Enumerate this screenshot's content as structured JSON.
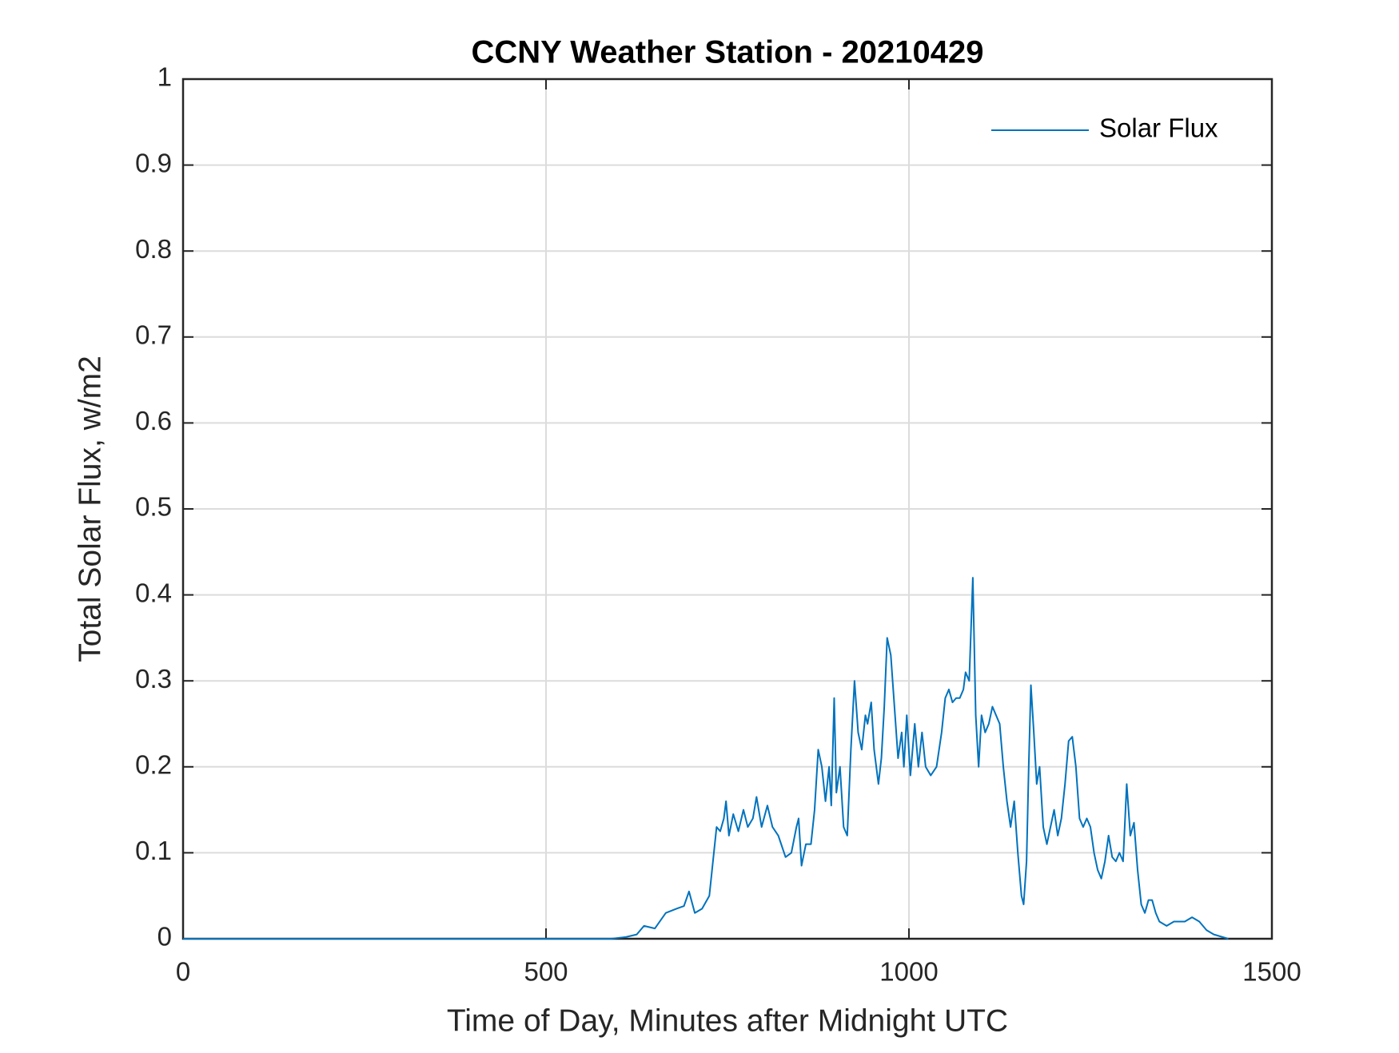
{
  "chart_data": {
    "type": "line",
    "title": "CCNY Weather Station - 20210429",
    "xlabel": "Time of Day, Minutes after Midnight UTC",
    "ylabel": "Total Solar Flux, w/m2",
    "xlim": [
      0,
      1500
    ],
    "xticks": [
      0,
      500,
      1000,
      1500
    ],
    "ylim": [
      0,
      1
    ],
    "yticks": [
      0,
      0.1,
      0.2,
      0.3,
      0.4,
      0.5,
      0.6,
      0.7,
      0.8,
      0.9,
      1
    ],
    "grid": true,
    "legend": "northeast",
    "x": [
      0,
      590,
      610,
      625,
      635,
      650,
      665,
      680,
      690,
      697,
      705,
      715,
      725,
      730,
      735,
      740,
      745,
      748,
      752,
      758,
      765,
      772,
      778,
      785,
      790,
      797,
      805,
      812,
      820,
      830,
      838,
      845,
      848,
      852,
      858,
      865,
      870,
      875,
      880,
      885,
      890,
      893,
      897,
      900,
      905,
      910,
      915,
      920,
      925,
      930,
      935,
      940,
      943,
      948,
      952,
      958,
      962,
      966,
      970,
      975,
      980,
      985,
      990,
      993,
      997,
      1002,
      1008,
      1013,
      1018,
      1023,
      1030,
      1038,
      1045,
      1050,
      1055,
      1060,
      1065,
      1070,
      1075,
      1078,
      1083,
      1088,
      1092,
      1096,
      1100,
      1105,
      1110,
      1115,
      1120,
      1125,
      1130,
      1135,
      1140,
      1145,
      1150,
      1155,
      1158,
      1162,
      1165,
      1168,
      1172,
      1176,
      1180,
      1185,
      1190,
      1195,
      1200,
      1205,
      1210,
      1215,
      1220,
      1225,
      1230,
      1235,
      1240,
      1245,
      1250,
      1255,
      1260,
      1265,
      1270,
      1275,
      1280,
      1285,
      1290,
      1295,
      1300,
      1305,
      1310,
      1315,
      1320,
      1325,
      1330,
      1335,
      1340,
      1345,
      1355,
      1365,
      1380,
      1390,
      1400,
      1410,
      1420,
      1440
    ],
    "series": [
      {
        "name": "Solar Flux",
        "color": "#0072bd",
        "values": [
          0,
          0,
          0.002,
          0.005,
          0.015,
          0.012,
          0.03,
          0.035,
          0.038,
          0.055,
          0.03,
          0.035,
          0.05,
          0.09,
          0.13,
          0.125,
          0.14,
          0.16,
          0.12,
          0.145,
          0.125,
          0.15,
          0.13,
          0.14,
          0.165,
          0.13,
          0.155,
          0.13,
          0.12,
          0.095,
          0.1,
          0.13,
          0.14,
          0.085,
          0.11,
          0.11,
          0.15,
          0.22,
          0.2,
          0.16,
          0.2,
          0.155,
          0.28,
          0.17,
          0.2,
          0.13,
          0.12,
          0.22,
          0.3,
          0.24,
          0.22,
          0.26,
          0.25,
          0.275,
          0.22,
          0.18,
          0.21,
          0.27,
          0.35,
          0.33,
          0.27,
          0.21,
          0.24,
          0.2,
          0.26,
          0.19,
          0.25,
          0.2,
          0.24,
          0.2,
          0.19,
          0.2,
          0.24,
          0.28,
          0.29,
          0.275,
          0.28,
          0.28,
          0.29,
          0.31,
          0.3,
          0.42,
          0.26,
          0.2,
          0.26,
          0.24,
          0.25,
          0.27,
          0.26,
          0.25,
          0.2,
          0.16,
          0.13,
          0.16,
          0.1,
          0.05,
          0.04,
          0.09,
          0.2,
          0.295,
          0.24,
          0.18,
          0.2,
          0.13,
          0.11,
          0.13,
          0.15,
          0.12,
          0.14,
          0.18,
          0.23,
          0.235,
          0.2,
          0.14,
          0.13,
          0.14,
          0.13,
          0.1,
          0.08,
          0.07,
          0.09,
          0.12,
          0.095,
          0.09,
          0.1,
          0.09,
          0.18,
          0.12,
          0.135,
          0.08,
          0.04,
          0.03,
          0.045,
          0.045,
          0.03,
          0.02,
          0.015,
          0.02,
          0.02,
          0.025,
          0.02,
          0.01,
          0.005,
          0
        ]
      }
    ]
  }
}
